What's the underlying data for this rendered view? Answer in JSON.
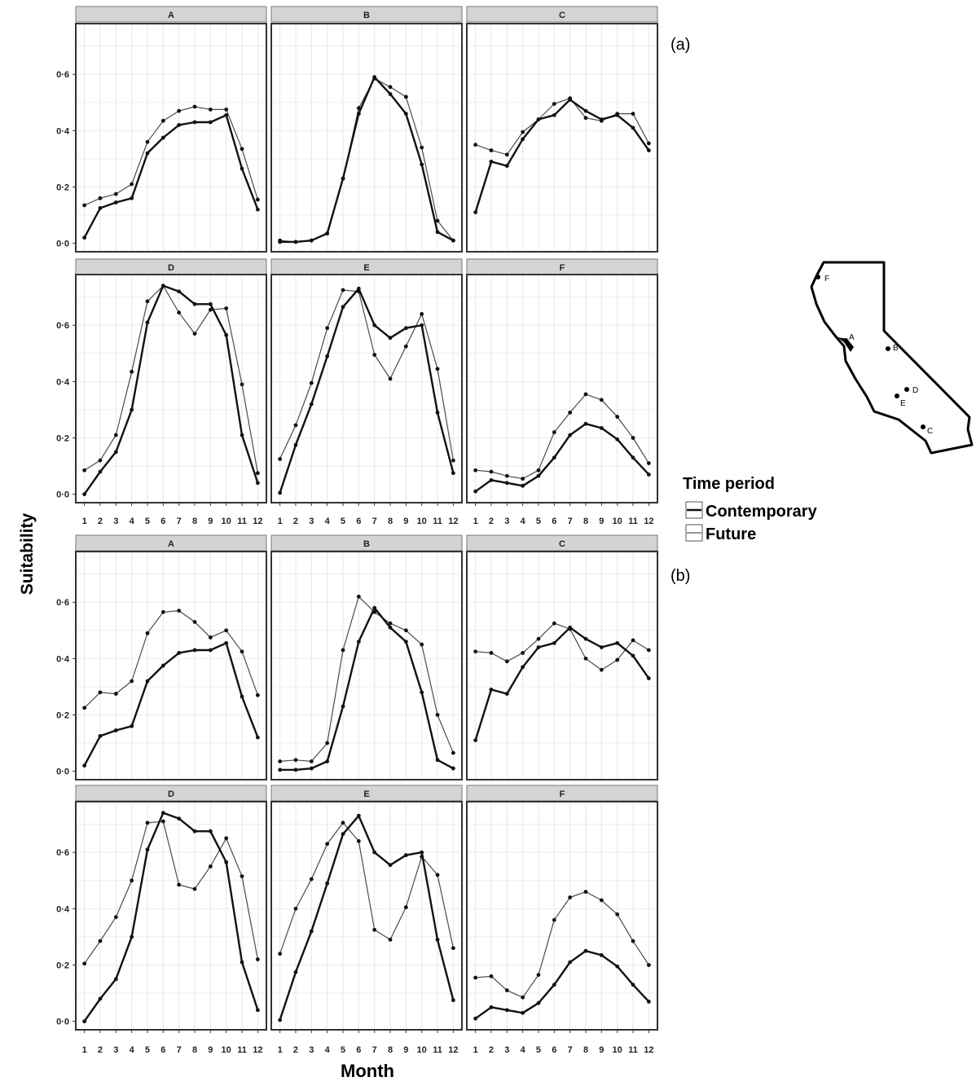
{
  "figure": {
    "ylabel": "Suitability",
    "xlabel": "Month",
    "legend": {
      "title": "Time period",
      "entries": [
        "Contemporary",
        "Future"
      ]
    },
    "panel_labels": [
      "(a)",
      "(b)"
    ],
    "map": {
      "type": "outline-map",
      "sites": [
        "A",
        "B",
        "C",
        "D",
        "E",
        "F"
      ]
    }
  },
  "chart_data": [
    {
      "type": "line",
      "panel": "(a)",
      "xlabel": "Month",
      "ylabel": "Suitability",
      "x": [
        1,
        2,
        3,
        4,
        5,
        6,
        7,
        8,
        9,
        10,
        11,
        12
      ],
      "xticks": [
        "1",
        "2",
        "3",
        "4",
        "5",
        "6",
        "7",
        "8",
        "9",
        "10",
        "11",
        "12"
      ],
      "ylim": [
        -0.03,
        0.78
      ],
      "yticks": [
        0.0,
        0.2,
        0.4,
        0.6
      ],
      "ytick_labels": [
        "0·0",
        "0·2",
        "0·4",
        "0·6"
      ],
      "grid": true,
      "facets": [
        {
          "name": "A",
          "series": [
            {
              "name": "Contemporary",
              "values": [
                0.02,
                0.125,
                0.145,
                0.16,
                0.32,
                0.375,
                0.42,
                0.43,
                0.43,
                0.455,
                0.265,
                0.12
              ]
            },
            {
              "name": "Future",
              "values": [
                0.135,
                0.16,
                0.175,
                0.21,
                0.36,
                0.435,
                0.47,
                0.485,
                0.475,
                0.475,
                0.335,
                0.155
              ]
            }
          ]
        },
        {
          "name": "B",
          "series": [
            {
              "name": "Contemporary",
              "values": [
                0.005,
                0.005,
                0.01,
                0.035,
                0.23,
                0.46,
                0.59,
                0.53,
                0.46,
                0.28,
                0.04,
                0.01
              ]
            },
            {
              "name": "Future",
              "values": [
                0.01,
                0.005,
                0.01,
                0.035,
                0.23,
                0.48,
                0.585,
                0.555,
                0.52,
                0.34,
                0.08,
                0.01
              ]
            }
          ]
        },
        {
          "name": "C",
          "series": [
            {
              "name": "Contemporary",
              "values": [
                0.11,
                0.29,
                0.275,
                0.37,
                0.44,
                0.455,
                0.51,
                0.47,
                0.44,
                0.455,
                0.41,
                0.33
              ]
            },
            {
              "name": "Future",
              "values": [
                0.35,
                0.33,
                0.315,
                0.395,
                0.44,
                0.495,
                0.515,
                0.445,
                0.435,
                0.46,
                0.46,
                0.355
              ]
            }
          ]
        },
        {
          "name": "D",
          "series": [
            {
              "name": "Contemporary",
              "values": [
                0.0,
                0.08,
                0.15,
                0.3,
                0.61,
                0.74,
                0.72,
                0.675,
                0.675,
                0.565,
                0.21,
                0.04
              ]
            },
            {
              "name": "Future",
              "values": [
                0.085,
                0.12,
                0.21,
                0.435,
                0.685,
                0.74,
                0.645,
                0.57,
                0.655,
                0.66,
                0.39,
                0.075
              ]
            }
          ]
        },
        {
          "name": "E",
          "series": [
            {
              "name": "Contemporary",
              "values": [
                0.005,
                0.175,
                0.32,
                0.49,
                0.665,
                0.73,
                0.6,
                0.555,
                0.59,
                0.6,
                0.29,
                0.075
              ]
            },
            {
              "name": "Future",
              "values": [
                0.125,
                0.245,
                0.395,
                0.59,
                0.725,
                0.72,
                0.495,
                0.41,
                0.525,
                0.64,
                0.445,
                0.12
              ]
            }
          ]
        },
        {
          "name": "F",
          "series": [
            {
              "name": "Contemporary",
              "values": [
                0.01,
                0.05,
                0.04,
                0.03,
                0.065,
                0.13,
                0.21,
                0.25,
                0.235,
                0.195,
                0.13,
                0.07
              ]
            },
            {
              "name": "Future",
              "values": [
                0.085,
                0.08,
                0.065,
                0.055,
                0.085,
                0.22,
                0.29,
                0.355,
                0.335,
                0.275,
                0.2,
                0.11
              ]
            }
          ]
        }
      ]
    },
    {
      "type": "line",
      "panel": "(b)",
      "xlabel": "Month",
      "ylabel": "Suitability",
      "x": [
        1,
        2,
        3,
        4,
        5,
        6,
        7,
        8,
        9,
        10,
        11,
        12
      ],
      "xticks": [
        "1",
        "2",
        "3",
        "4",
        "5",
        "6",
        "7",
        "8",
        "9",
        "10",
        "11",
        "12"
      ],
      "ylim": [
        -0.03,
        0.78
      ],
      "yticks": [
        0.0,
        0.2,
        0.4,
        0.6
      ],
      "ytick_labels": [
        "0·0",
        "0·2",
        "0·4",
        "0·6"
      ],
      "grid": true,
      "facets": [
        {
          "name": "A",
          "series": [
            {
              "name": "Contemporary",
              "values": [
                0.02,
                0.125,
                0.145,
                0.16,
                0.32,
                0.375,
                0.42,
                0.43,
                0.43,
                0.455,
                0.265,
                0.12
              ]
            },
            {
              "name": "Future",
              "values": [
                0.225,
                0.28,
                0.275,
                0.32,
                0.49,
                0.565,
                0.57,
                0.53,
                0.475,
                0.5,
                0.425,
                0.27
              ]
            }
          ]
        },
        {
          "name": "B",
          "series": [
            {
              "name": "Contemporary",
              "values": [
                0.005,
                0.005,
                0.01,
                0.035,
                0.23,
                0.46,
                0.58,
                0.51,
                0.46,
                0.28,
                0.04,
                0.01
              ]
            },
            {
              "name": "Future",
              "values": [
                0.035,
                0.04,
                0.035,
                0.1,
                0.43,
                0.62,
                0.565,
                0.525,
                0.5,
                0.45,
                0.2,
                0.065
              ]
            }
          ]
        },
        {
          "name": "C",
          "series": [
            {
              "name": "Contemporary",
              "values": [
                0.11,
                0.29,
                0.275,
                0.37,
                0.44,
                0.455,
                0.51,
                0.47,
                0.44,
                0.455,
                0.41,
                0.33
              ]
            },
            {
              "name": "Future",
              "values": [
                0.425,
                0.42,
                0.39,
                0.42,
                0.47,
                0.525,
                0.505,
                0.4,
                0.36,
                0.395,
                0.465,
                0.43
              ]
            }
          ]
        },
        {
          "name": "D",
          "series": [
            {
              "name": "Contemporary",
              "values": [
                0.0,
                0.08,
                0.15,
                0.3,
                0.61,
                0.74,
                0.72,
                0.675,
                0.675,
                0.565,
                0.21,
                0.04
              ]
            },
            {
              "name": "Future",
              "values": [
                0.205,
                0.285,
                0.37,
                0.5,
                0.705,
                0.71,
                0.485,
                0.47,
                0.55,
                0.65,
                0.515,
                0.22
              ]
            }
          ]
        },
        {
          "name": "E",
          "series": [
            {
              "name": "Contemporary",
              "values": [
                0.005,
                0.175,
                0.32,
                0.49,
                0.665,
                0.73,
                0.6,
                0.555,
                0.59,
                0.6,
                0.29,
                0.075
              ]
            },
            {
              "name": "Future",
              "values": [
                0.24,
                0.4,
                0.505,
                0.63,
                0.705,
                0.64,
                0.325,
                0.29,
                0.405,
                0.585,
                0.52,
                0.26
              ]
            }
          ]
        },
        {
          "name": "F",
          "series": [
            {
              "name": "Contemporary",
              "values": [
                0.01,
                0.05,
                0.04,
                0.03,
                0.065,
                0.13,
                0.21,
                0.25,
                0.235,
                0.195,
                0.13,
                0.07
              ]
            },
            {
              "name": "Future",
              "values": [
                0.155,
                0.16,
                0.11,
                0.085,
                0.165,
                0.36,
                0.44,
                0.46,
                0.43,
                0.38,
                0.285,
                0.2
              ]
            }
          ]
        }
      ]
    }
  ]
}
